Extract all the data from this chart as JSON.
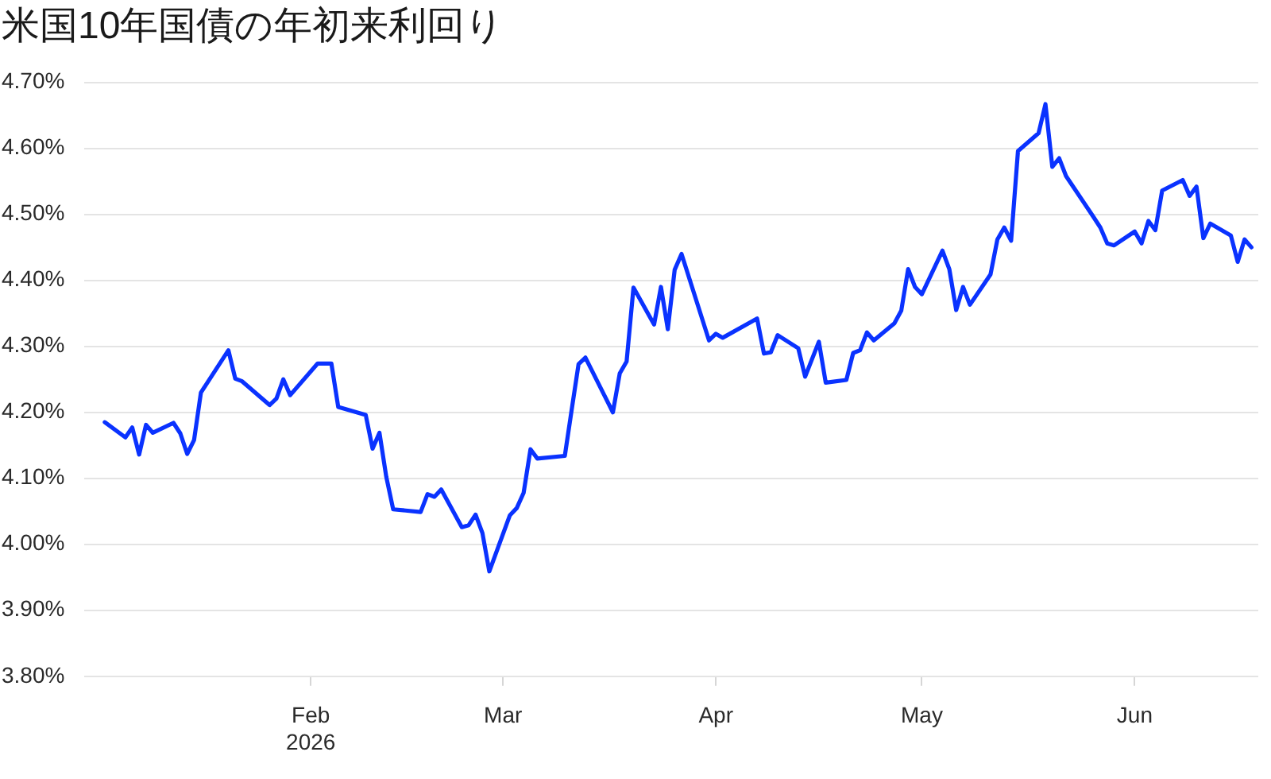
{
  "chart_data": {
    "type": "line",
    "title": "米国10年国債の年初来利回り",
    "x": [
      "2026-01-02",
      "2026-01-05",
      "2026-01-06",
      "2026-01-07",
      "2026-01-08",
      "2026-01-09",
      "2026-01-12",
      "2026-01-13",
      "2026-01-14",
      "2026-01-15",
      "2026-01-16",
      "2026-01-20",
      "2026-01-21",
      "2026-01-22",
      "2026-01-26",
      "2026-01-27",
      "2026-01-28",
      "2026-01-29",
      "2026-02-02",
      "2026-02-04",
      "2026-02-05",
      "2026-02-09",
      "2026-02-10",
      "2026-02-11",
      "2026-02-12",
      "2026-02-13",
      "2026-02-17",
      "2026-02-18",
      "2026-02-19",
      "2026-02-20",
      "2026-02-23",
      "2026-02-24",
      "2026-02-25",
      "2026-02-26",
      "2026-02-27",
      "2026-03-02",
      "2026-03-03",
      "2026-03-04",
      "2026-03-05",
      "2026-03-06",
      "2026-03-10",
      "2026-03-11",
      "2026-03-12",
      "2026-03-13",
      "2026-03-17",
      "2026-03-18",
      "2026-03-19",
      "2026-03-20",
      "2026-03-23",
      "2026-03-24",
      "2026-03-25",
      "2026-03-26",
      "2026-03-27",
      "2026-03-31",
      "2026-04-01",
      "2026-04-02",
      "2026-04-07",
      "2026-04-08",
      "2026-04-09",
      "2026-04-10",
      "2026-04-13",
      "2026-04-14",
      "2026-04-16",
      "2026-04-17",
      "2026-04-20",
      "2026-04-21",
      "2026-04-22",
      "2026-04-23",
      "2026-04-24",
      "2026-04-27",
      "2026-04-28",
      "2026-04-29",
      "2026-04-30",
      "2026-05-01",
      "2026-05-04",
      "2026-05-05",
      "2026-05-06",
      "2026-05-07",
      "2026-05-08",
      "2026-05-11",
      "2026-05-12",
      "2026-05-13",
      "2026-05-14",
      "2026-05-15",
      "2026-05-18",
      "2026-05-19",
      "2026-05-20",
      "2026-05-21",
      "2026-05-22",
      "2026-05-26",
      "2026-05-27",
      "2026-05-28",
      "2026-05-29",
      "2026-06-01",
      "2026-06-02",
      "2026-06-03",
      "2026-06-04",
      "2026-06-05",
      "2026-06-08",
      "2026-06-09",
      "2026-06-10",
      "2026-06-11",
      "2026-06-12",
      "2026-06-15",
      "2026-06-16",
      "2026-06-17",
      "2026-06-18"
    ],
    "values": [
      4.185,
      4.162,
      4.177,
      4.136,
      4.181,
      4.169,
      4.184,
      4.168,
      4.137,
      4.158,
      4.23,
      4.294,
      4.251,
      4.247,
      4.211,
      4.221,
      4.25,
      4.226,
      4.274,
      4.274,
      4.208,
      4.196,
      4.145,
      4.169,
      4.102,
      4.053,
      4.049,
      4.076,
      4.072,
      4.083,
      4.026,
      4.029,
      4.045,
      4.017,
      3.959,
      4.044,
      4.055,
      4.078,
      4.144,
      4.13,
      4.134,
      4.204,
      4.273,
      4.283,
      4.2,
      4.259,
      4.277,
      4.389,
      4.333,
      4.39,
      4.326,
      4.416,
      4.44,
      4.309,
      4.319,
      4.313,
      4.342,
      4.289,
      4.291,
      4.317,
      4.297,
      4.254,
      4.307,
      4.245,
      4.249,
      4.29,
      4.294,
      4.321,
      4.309,
      4.335,
      4.354,
      4.417,
      4.39,
      4.379,
      4.445,
      4.417,
      4.355,
      4.39,
      4.363,
      4.409,
      4.462,
      4.48,
      4.46,
      4.596,
      4.623,
      4.667,
      4.572,
      4.585,
      4.558,
      4.496,
      4.48,
      4.456,
      4.453,
      4.474,
      4.456,
      4.49,
      4.476,
      4.536,
      4.552,
      4.528,
      4.542,
      4.464,
      4.486,
      4.468,
      4.428,
      4.462,
      4.45
    ],
    "color": "#0a32ff",
    "xlim": [
      "2025-12-30",
      "2026-06-19"
    ],
    "xticks": [
      {
        "value": "2026-02-01",
        "label": "Feb\n2026"
      },
      {
        "value": "2026-03-01",
        "label": "Mar"
      },
      {
        "value": "2026-04-01",
        "label": "Apr"
      },
      {
        "value": "2026-05-01",
        "label": "May"
      },
      {
        "value": "2026-06-01",
        "label": "Jun"
      }
    ],
    "ylim": [
      3.8,
      4.7
    ],
    "yticks": [
      {
        "value": 3.8,
        "label": "3.80%"
      },
      {
        "value": 3.9,
        "label": "3.90%"
      },
      {
        "value": 4.0,
        "label": "4.00%"
      },
      {
        "value": 4.1,
        "label": "4.10%"
      },
      {
        "value": 4.2,
        "label": "4.20%"
      },
      {
        "value": 4.3,
        "label": "4.30%"
      },
      {
        "value": 4.4,
        "label": "4.40%"
      },
      {
        "value": 4.5,
        "label": "4.50%"
      },
      {
        "value": 4.6,
        "label": "4.60%"
      },
      {
        "value": 4.7,
        "label": "4.70%"
      }
    ],
    "grid": "y",
    "marker": "none",
    "line_style": "solid"
  }
}
